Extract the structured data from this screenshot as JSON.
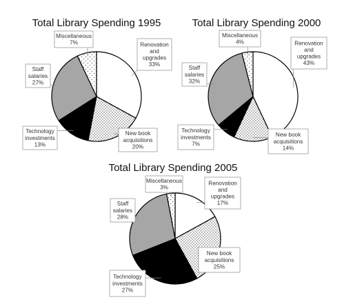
{
  "chart_data": [
    {
      "type": "pie",
      "title": "Total Library Spending 1995",
      "categories": [
        "Renovation and upgrades",
        "New book acquisitions",
        "Technology investments",
        "Staff salaries",
        "Miscellaneous"
      ],
      "values": [
        33,
        20,
        13,
        27,
        7
      ],
      "labels": [
        [
          "Renovation",
          "and",
          "upgrades",
          "33%"
        ],
        [
          "New book",
          "acquisitions",
          "20%"
        ],
        [
          "Technology",
          "investments",
          "13%"
        ],
        [
          "Staff",
          "salaries",
          "27%"
        ],
        [
          "Miscellaneous",
          "7%"
        ]
      ]
    },
    {
      "type": "pie",
      "title": "Total Library Spending 2000",
      "categories": [
        "Renovation and upgrades",
        "New book acquisitions",
        "Technology investments",
        "Staff salaries",
        "Miscellaneous"
      ],
      "values": [
        43,
        14,
        7,
        32,
        4
      ],
      "labels": [
        [
          "Renovation",
          "and",
          "upgrades",
          "43%"
        ],
        [
          "New book",
          "acquisitions",
          "14%"
        ],
        [
          "Technology",
          "investments",
          "7%"
        ],
        [
          "Staff",
          "salaries",
          "32%"
        ],
        [
          "Miscellaneous",
          "4%"
        ]
      ]
    },
    {
      "type": "pie",
      "title": "Total Library Spending 2005",
      "categories": [
        "Renovation and upgrades",
        "New book acquisitions",
        "Technology investments",
        "Staff salaries",
        "Miscellaneous"
      ],
      "values": [
        17,
        25,
        27,
        28,
        3
      ],
      "labels": [
        [
          "Renovation",
          "and",
          "upgrades",
          "17%"
        ],
        [
          "New book",
          "acquisitions",
          "25%"
        ],
        [
          "Technology",
          "investments",
          "27%"
        ],
        [
          "Staff",
          "salaries",
          "28%"
        ],
        [
          "Miscellaneous",
          "3%"
        ]
      ]
    }
  ],
  "styles": {
    "slice_fills": [
      "#ffffff",
      "dots-pattern",
      "#000000",
      "#a6a6a6",
      "sparse-dots-pattern"
    ],
    "start_angle": "12 o'clock",
    "direction": "clockwise",
    "legend": "none"
  }
}
